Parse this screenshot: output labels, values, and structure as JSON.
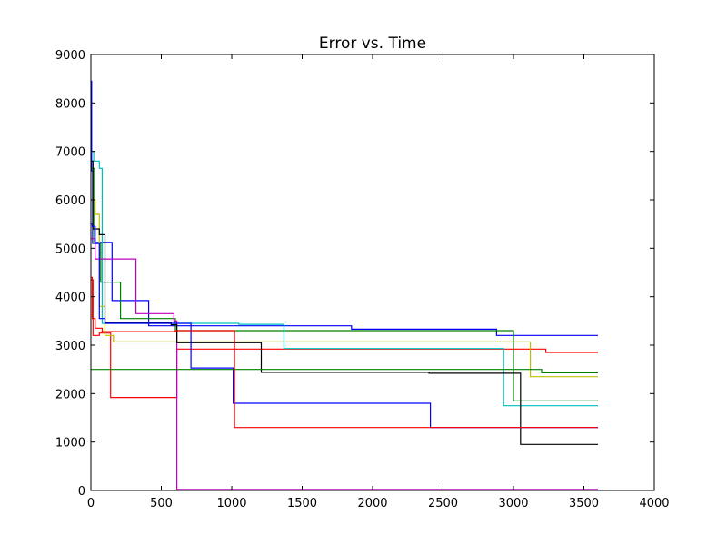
{
  "chart_data": {
    "type": "line",
    "title": "Error vs. Time",
    "xlabel": "",
    "ylabel": "",
    "xlim": [
      0,
      4000
    ],
    "ylim": [
      0,
      9000
    ],
    "xticks": [
      0,
      500,
      1000,
      1500,
      2000,
      2500,
      3000,
      3500,
      4000
    ],
    "yticks": [
      0,
      1000,
      2000,
      3000,
      4000,
      5000,
      6000,
      7000,
      8000,
      9000
    ],
    "grid": false,
    "step": "post",
    "series": [
      {
        "color": "#0000ff",
        "x": [
          0,
          5,
          12,
          40,
          150,
          410,
          1850,
          2880,
          3600
        ],
        "y": [
          8450,
          6600,
          5100,
          5120,
          3920,
          3400,
          3330,
          3200,
          3200
        ]
      },
      {
        "color": "#008000",
        "x": [
          0,
          25,
          70,
          210,
          600,
          3000,
          3600
        ],
        "y": [
          6650,
          5100,
          4300,
          3550,
          3300,
          1850,
          1850
        ]
      },
      {
        "color": "#ff0000",
        "x": [
          0,
          15,
          60,
          140,
          610,
          3230,
          3600
        ],
        "y": [
          4350,
          3200,
          3250,
          1920,
          2920,
          2850,
          2850
        ]
      },
      {
        "color": "#00bfbf",
        "x": [
          0,
          20,
          60,
          80,
          1050,
          1370,
          2930,
          3600
        ],
        "y": [
          7000,
          6800,
          6650,
          3450,
          3430,
          2930,
          1750,
          1750
        ]
      },
      {
        "color": "#bf00bf",
        "x": [
          0,
          30,
          320,
          590,
          610,
          3600
        ],
        "y": [
          5200,
          4780,
          3650,
          3500,
          20,
          20
        ]
      },
      {
        "color": "#bfbf00",
        "x": [
          0,
          30,
          60,
          100,
          160,
          3120,
          3600
        ],
        "y": [
          6000,
          5700,
          3800,
          3200,
          3070,
          2350,
          2350
        ]
      },
      {
        "color": "#000000",
        "x": [
          0,
          15,
          60,
          100,
          570,
          610,
          1210,
          2400,
          3050,
          3600
        ],
        "y": [
          6800,
          5400,
          5280,
          3470,
          3420,
          3050,
          2440,
          2420,
          950,
          950
        ]
      },
      {
        "color": "#0000ff",
        "x": [
          0,
          10,
          30,
          60,
          100,
          710,
          1010,
          2410,
          3600
        ],
        "y": [
          5500,
          5450,
          5100,
          3550,
          3450,
          2530,
          1800,
          1300,
          1300
        ]
      },
      {
        "color": "#008000",
        "x": [
          0,
          2000,
          3100,
          3200,
          3600
        ],
        "y": [
          2500,
          2500,
          2500,
          2430,
          2430
        ]
      },
      {
        "color": "#ff0000",
        "x": [
          0,
          10,
          30,
          80,
          600,
          1020,
          3600
        ],
        "y": [
          4400,
          3550,
          3350,
          3280,
          3300,
          1300,
          1300
        ]
      }
    ]
  }
}
